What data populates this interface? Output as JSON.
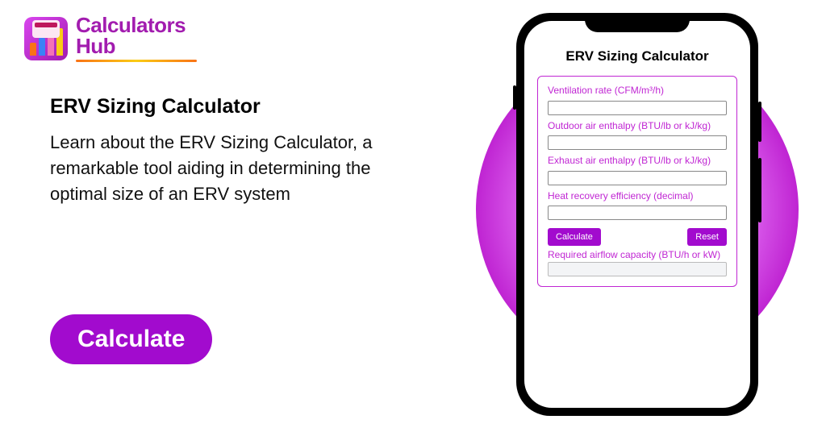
{
  "brand": {
    "name_line1": "Calculators",
    "name_line2": "Hub",
    "primary_color": "#a21caf",
    "accent_gradient": [
      "#f97316",
      "#facc15",
      "#f97316"
    ]
  },
  "hero": {
    "title": "ERV Sizing Calculator",
    "description": "Learn about the ERV Sizing Calculator, a remarkable tool aiding in determining the optimal size of an ERV system",
    "cta_label": "Calculate",
    "cta_bg": "#a20bce",
    "cta_fg": "#ffffff"
  },
  "circle": {
    "gradient_stops": [
      "#f5d0fe",
      "#e879f9",
      "#c026d3",
      "#a21caf"
    ]
  },
  "phone": {
    "frame_color": "#000000",
    "screen_bg": "#ffffff"
  },
  "app": {
    "title": "ERV Sizing Calculator",
    "border_color": "#c026d3",
    "label_color": "#c026d3",
    "fields": [
      {
        "label": "Ventilation rate (CFM/m³/h)"
      },
      {
        "label": "Outdoor air enthalpy (BTU/lb or kJ/kg)"
      },
      {
        "label": "Exhaust air enthalpy (BTU/lb or kJ/kg)"
      },
      {
        "label": "Heat recovery efficiency (decimal)"
      }
    ],
    "buttons": {
      "calculate": "Calculate",
      "reset": "Reset",
      "bg": "#a20bce",
      "fg": "#ffffff"
    },
    "result_label": "Required airflow capacity (BTU/h or kW)"
  }
}
